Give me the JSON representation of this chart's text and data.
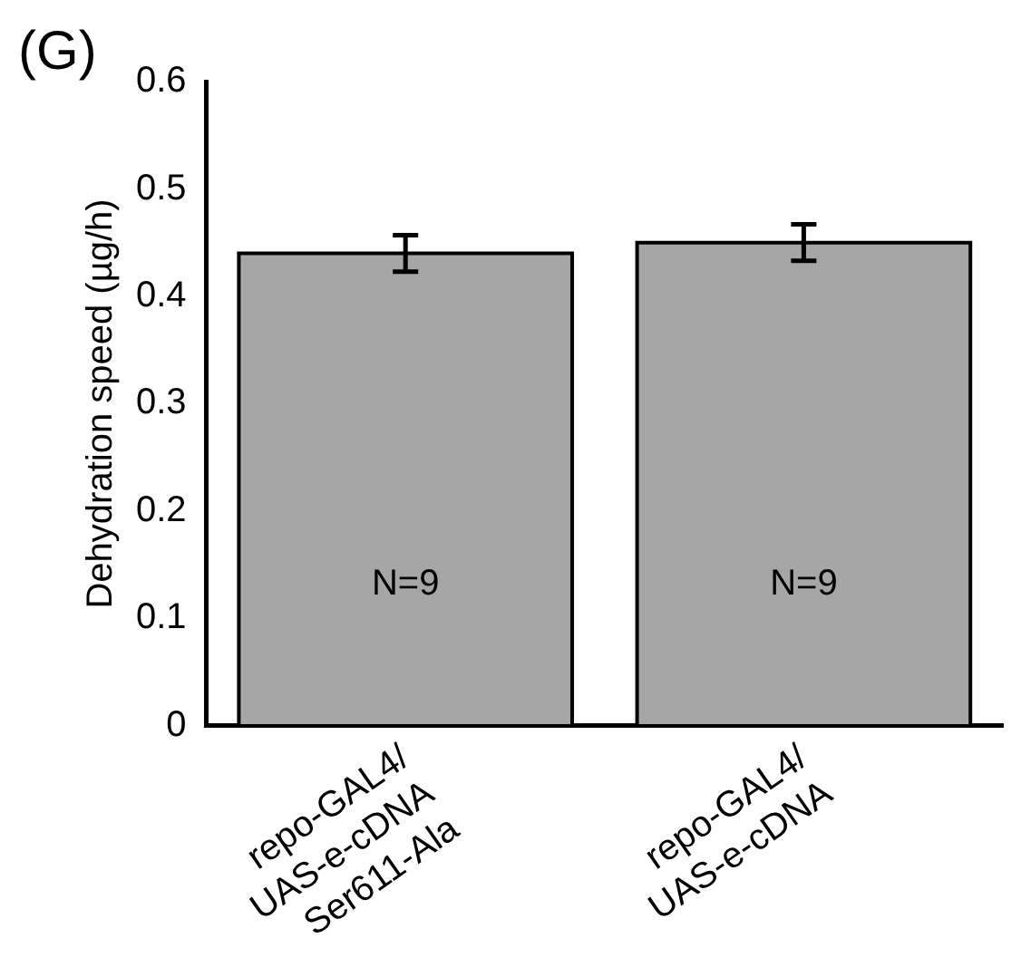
{
  "chart_data": {
    "type": "bar",
    "title": "(G)",
    "ylabel": "Dehydration speed (µg/h)",
    "categories": [
      "repo-GAL4/\nUAS-e-cDNA\nSer611-Ala",
      "repo-GAL4/\nUAS-e-cDNA"
    ],
    "values": [
      0.44,
      0.45
    ],
    "errors": [
      0.017,
      0.017
    ],
    "color": "#a6a6a6",
    "ylim": [
      0,
      0.6
    ],
    "yticks": [
      0,
      0.1,
      0.2,
      0.3,
      0.4,
      0.5,
      0.6
    ],
    "grid": false,
    "legend": false,
    "annotations": [
      "N=9",
      "N=9"
    ]
  }
}
